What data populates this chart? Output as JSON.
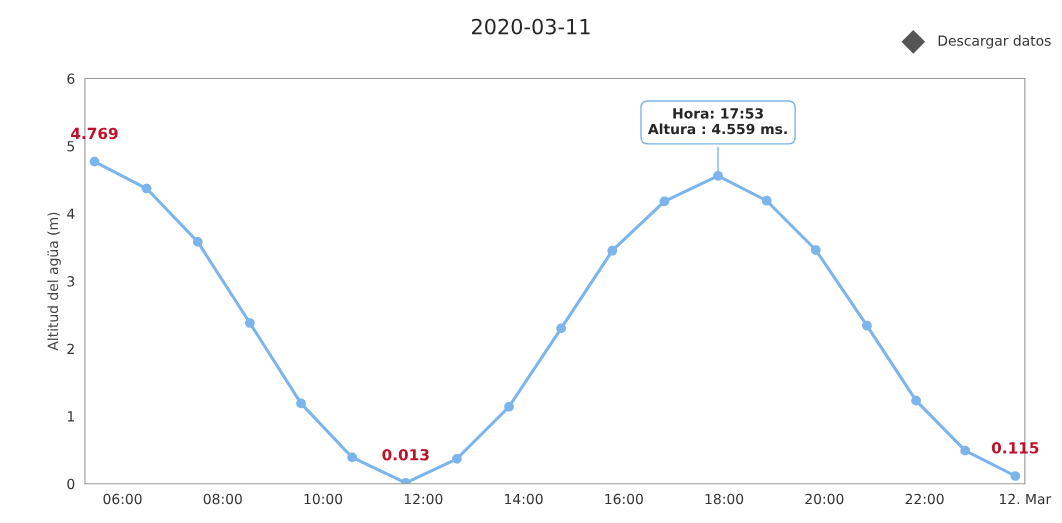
{
  "chart_data": {
    "type": "line",
    "title": "2020-03-11",
    "ylabel": "Altitud del agüa (m)",
    "x": [
      5.44,
      6.48,
      7.5,
      8.54,
      9.56,
      10.58,
      11.65,
      12.67,
      13.71,
      14.75,
      15.77,
      16.81,
      17.88,
      18.85,
      19.83,
      20.85,
      21.83,
      22.81,
      23.81
    ],
    "series": [
      {
        "color": "#7cb5ec",
        "values": [
          4.769,
          4.37,
          3.58,
          2.38,
          1.19,
          0.39,
          0.013,
          0.37,
          1.14,
          2.3,
          3.45,
          4.18,
          4.559,
          4.19,
          3.46,
          2.34,
          1.23,
          0.49,
          0.115
        ],
        "value_labels": [
          "4.769",
          null,
          null,
          null,
          null,
          null,
          "0.013",
          null,
          null,
          null,
          null,
          null,
          null,
          null,
          null,
          null,
          null,
          null,
          "0.115"
        ]
      }
    ],
    "xlim": [
      5.25,
      24.0
    ],
    "xticks": [
      {
        "value": 6,
        "label": "06:00"
      },
      {
        "value": 8,
        "label": "08:00"
      },
      {
        "value": 10,
        "label": "10:00"
      },
      {
        "value": 12,
        "label": "12:00"
      },
      {
        "value": 14,
        "label": "14:00"
      },
      {
        "value": 16,
        "label": "16:00"
      },
      {
        "value": 18,
        "label": "18:00"
      },
      {
        "value": 20,
        "label": "20:00"
      },
      {
        "value": 22,
        "label": "22:00"
      },
      {
        "value": 24,
        "label": "12. Mar"
      }
    ],
    "ylim": [
      0,
      6
    ],
    "yticks": [
      0,
      1,
      2,
      3,
      4,
      5,
      6
    ],
    "grid": false,
    "marker": "circle",
    "line_style": "solid",
    "annotations": [
      "Descargar datos",
      {
        "text": "Hora: 17:53\nAltura : 4.559 ms.",
        "x": 17.88,
        "y": 4.559
      }
    ]
  }
}
